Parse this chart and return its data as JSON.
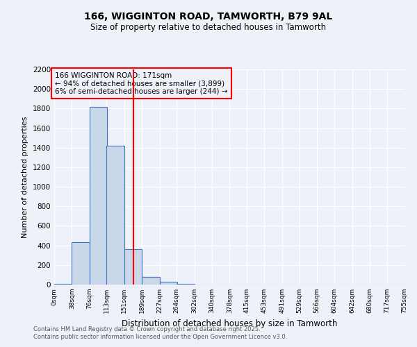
{
  "title": "166, WIGGINTON ROAD, TAMWORTH, B79 9AL",
  "subtitle": "Size of property relative to detached houses in Tamworth",
  "xlabel": "Distribution of detached houses by size in Tamworth",
  "ylabel": "Number of detached properties",
  "bin_edges": [
    0,
    38,
    76,
    113,
    151,
    189,
    227,
    264,
    302,
    340,
    378,
    415,
    453,
    491,
    529,
    566,
    604,
    642,
    680,
    717,
    755
  ],
  "bin_labels": [
    "0sqm",
    "38sqm",
    "76sqm",
    "113sqm",
    "151sqm",
    "189sqm",
    "227sqm",
    "264sqm",
    "302sqm",
    "340sqm",
    "378sqm",
    "415sqm",
    "453sqm",
    "491sqm",
    "529sqm",
    "566sqm",
    "604sqm",
    "642sqm",
    "680sqm",
    "717sqm",
    "755sqm"
  ],
  "counts": [
    10,
    430,
    1820,
    1420,
    360,
    80,
    25,
    10,
    0,
    0,
    0,
    0,
    0,
    0,
    0,
    0,
    0,
    0,
    0,
    0
  ],
  "bar_color": "#c8d8e8",
  "bar_edge_color": "#4472c4",
  "red_line_x": 171,
  "ylim": [
    0,
    2200
  ],
  "yticks": [
    0,
    200,
    400,
    600,
    800,
    1000,
    1200,
    1400,
    1600,
    1800,
    2000,
    2200
  ],
  "annotation_title": "166 WIGGINTON ROAD: 171sqm",
  "annotation_line1": "← 94% of detached houses are smaller (3,899)",
  "annotation_line2": "6% of semi-detached houses are larger (244) →",
  "footer1": "Contains HM Land Registry data © Crown copyright and database right 2025.",
  "footer2": "Contains public sector information licensed under the Open Government Licence v3.0.",
  "background_color": "#eef2f8",
  "grid_color": "#ffffff"
}
